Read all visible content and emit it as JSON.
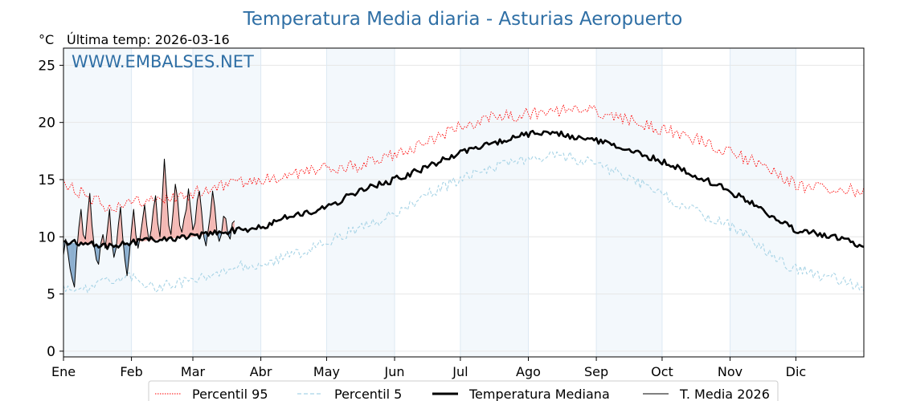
{
  "chart_data": {
    "type": "line",
    "title": "Temperatura Media diaria - Asturias Aeropuerto",
    "unit_label": "°C",
    "last_temp_label": "Última temp: 2026-03-16",
    "watermark": "WWW.EMBALSES.NET",
    "ylim": [
      -0.5,
      26.5
    ],
    "yticks": [
      0,
      5,
      10,
      15,
      20,
      25
    ],
    "xlim": [
      0,
      365
    ],
    "months": [
      {
        "label": "Ene",
        "day": 0
      },
      {
        "label": "Feb",
        "day": 31
      },
      {
        "label": "Mar",
        "day": 59
      },
      {
        "label": "Abr",
        "day": 90
      },
      {
        "label": "May",
        "day": 120
      },
      {
        "label": "Jun",
        "day": 151
      },
      {
        "label": "Jul",
        "day": 181
      },
      {
        "label": "Ago",
        "day": 212
      },
      {
        "label": "Sep",
        "day": 243
      },
      {
        "label": "Oct",
        "day": 273
      },
      {
        "label": "Nov",
        "day": 304
      },
      {
        "label": "Dic",
        "day": 334
      }
    ],
    "shaded_month_bands": [
      [
        0,
        31
      ],
      [
        59,
        90
      ],
      [
        120,
        151
      ],
      [
        181,
        212
      ],
      [
        243,
        273
      ],
      [
        304,
        334
      ]
    ],
    "grid": true,
    "legend_position": "bottom-center",
    "series": [
      {
        "name": "Percentil 95",
        "color": "#ff0000",
        "style": "dotted",
        "points": [
          [
            0,
            14.6
          ],
          [
            10,
            13.6
          ],
          [
            20,
            12.6
          ],
          [
            31,
            13.0
          ],
          [
            45,
            13.4
          ],
          [
            59,
            13.8
          ],
          [
            75,
            14.6
          ],
          [
            90,
            15.0
          ],
          [
            105,
            15.4
          ],
          [
            120,
            16.0
          ],
          [
            135,
            16.2
          ],
          [
            151,
            17.2
          ],
          [
            165,
            18.2
          ],
          [
            181,
            19.6
          ],
          [
            195,
            20.4
          ],
          [
            212,
            20.8
          ],
          [
            225,
            21.0
          ],
          [
            243,
            21.0
          ],
          [
            255,
            20.4
          ],
          [
            273,
            19.4
          ],
          [
            285,
            18.8
          ],
          [
            300,
            17.6
          ],
          [
            315,
            16.6
          ],
          [
            325,
            15.6
          ],
          [
            334,
            14.5
          ],
          [
            345,
            14.2
          ],
          [
            355,
            14.4
          ],
          [
            365,
            13.8
          ]
        ]
      },
      {
        "name": "Percentil 5",
        "color": "#a8d4e6",
        "style": "dashed",
        "points": [
          [
            0,
            5.6
          ],
          [
            8,
            5.3
          ],
          [
            15,
            5.8
          ],
          [
            25,
            6.2
          ],
          [
            31,
            6.4
          ],
          [
            40,
            5.6
          ],
          [
            50,
            5.8
          ],
          [
            59,
            6.1
          ],
          [
            70,
            7.0
          ],
          [
            80,
            7.4
          ],
          [
            90,
            7.6
          ],
          [
            105,
            8.4
          ],
          [
            120,
            9.6
          ],
          [
            135,
            10.8
          ],
          [
            151,
            12.0
          ],
          [
            165,
            13.6
          ],
          [
            181,
            15.0
          ],
          [
            195,
            16.0
          ],
          [
            212,
            16.8
          ],
          [
            225,
            17.2
          ],
          [
            235,
            16.8
          ],
          [
            243,
            16.4
          ],
          [
            255,
            15.4
          ],
          [
            273,
            13.8
          ],
          [
            285,
            12.4
          ],
          [
            300,
            11.4
          ],
          [
            315,
            9.6
          ],
          [
            330,
            7.4
          ],
          [
            345,
            6.6
          ],
          [
            355,
            6.2
          ],
          [
            365,
            5.3
          ]
        ]
      },
      {
        "name": "Temperatura Mediana",
        "color": "#000000",
        "style": "solid-thick",
        "points": [
          [
            0,
            9.5
          ],
          [
            10,
            9.4
          ],
          [
            20,
            9.2
          ],
          [
            31,
            9.5
          ],
          [
            45,
            9.8
          ],
          [
            59,
            10.0
          ],
          [
            70,
            10.4
          ],
          [
            80,
            10.6
          ],
          [
            90,
            10.8
          ],
          [
            100,
            11.6
          ],
          [
            110,
            12.0
          ],
          [
            120,
            12.6
          ],
          [
            135,
            14.0
          ],
          [
            151,
            15.0
          ],
          [
            165,
            16.0
          ],
          [
            181,
            17.4
          ],
          [
            195,
            18.2
          ],
          [
            212,
            19.0
          ],
          [
            225,
            19.0
          ],
          [
            240,
            18.6
          ],
          [
            255,
            17.8
          ],
          [
            273,
            16.6
          ],
          [
            285,
            15.6
          ],
          [
            300,
            14.4
          ],
          [
            315,
            12.8
          ],
          [
            325,
            11.6
          ],
          [
            334,
            10.6
          ],
          [
            345,
            10.2
          ],
          [
            355,
            9.8
          ],
          [
            365,
            9.2
          ]
        ]
      },
      {
        "name": "T. Media 2026",
        "color": "#000000",
        "style": "solid-thin",
        "points": [
          [
            0,
            8.4
          ],
          [
            1,
            9.8
          ],
          [
            2,
            8.6
          ],
          [
            3,
            7.2
          ],
          [
            4,
            6.3
          ],
          [
            5,
            5.6
          ],
          [
            6,
            8.6
          ],
          [
            7,
            10.8
          ],
          [
            8,
            12.4
          ],
          [
            9,
            10.2
          ],
          [
            10,
            9.8
          ],
          [
            11,
            12.0
          ],
          [
            12,
            13.8
          ],
          [
            13,
            11.0
          ],
          [
            14,
            9.2
          ],
          [
            15,
            8.0
          ],
          [
            16,
            7.6
          ],
          [
            17,
            9.4
          ],
          [
            18,
            10.2
          ],
          [
            19,
            9.0
          ],
          [
            20,
            10.6
          ],
          [
            21,
            12.4
          ],
          [
            22,
            9.6
          ],
          [
            23,
            8.2
          ],
          [
            24,
            9.0
          ],
          [
            25,
            11.0
          ],
          [
            26,
            12.6
          ],
          [
            27,
            10.0
          ],
          [
            28,
            8.0
          ],
          [
            29,
            6.6
          ],
          [
            30,
            8.4
          ],
          [
            31,
            10.6
          ],
          [
            32,
            12.4
          ],
          [
            33,
            10.2
          ],
          [
            34,
            9.0
          ],
          [
            35,
            10.0
          ],
          [
            36,
            11.4
          ],
          [
            37,
            12.8
          ],
          [
            38,
            11.0
          ],
          [
            39,
            9.6
          ],
          [
            40,
            10.6
          ],
          [
            41,
            12.4
          ],
          [
            42,
            13.6
          ],
          [
            43,
            11.2
          ],
          [
            44,
            10.0
          ],
          [
            45,
            13.2
          ],
          [
            46,
            16.8
          ],
          [
            47,
            14.0
          ],
          [
            48,
            11.0
          ],
          [
            49,
            10.2
          ],
          [
            50,
            12.2
          ],
          [
            51,
            14.6
          ],
          [
            52,
            13.4
          ],
          [
            53,
            11.0
          ],
          [
            54,
            10.4
          ],
          [
            55,
            11.6
          ],
          [
            56,
            12.4
          ],
          [
            57,
            14.2
          ],
          [
            58,
            12.4
          ],
          [
            59,
            10.6
          ],
          [
            60,
            11.2
          ],
          [
            61,
            13.2
          ],
          [
            62,
            14.0
          ],
          [
            63,
            12.2
          ],
          [
            64,
            10.0
          ],
          [
            65,
            9.2
          ],
          [
            66,
            10.6
          ],
          [
            67,
            12.0
          ],
          [
            68,
            14.0
          ],
          [
            69,
            12.6
          ],
          [
            70,
            10.4
          ],
          [
            71,
            9.6
          ],
          [
            72,
            10.2
          ],
          [
            73,
            11.8
          ],
          [
            74,
            11.6
          ],
          [
            75,
            10.2
          ],
          [
            76,
            9.8
          ],
          [
            77,
            11.2
          ],
          [
            78,
            11.4
          ]
        ]
      }
    ],
    "legend": [
      "Percentil 95",
      "Percentil 5",
      "Temperatura Mediana",
      "T. Media 2026"
    ],
    "fill_above_median_color": "#f4b8b4",
    "fill_below_median_color": "#8aaecf"
  }
}
